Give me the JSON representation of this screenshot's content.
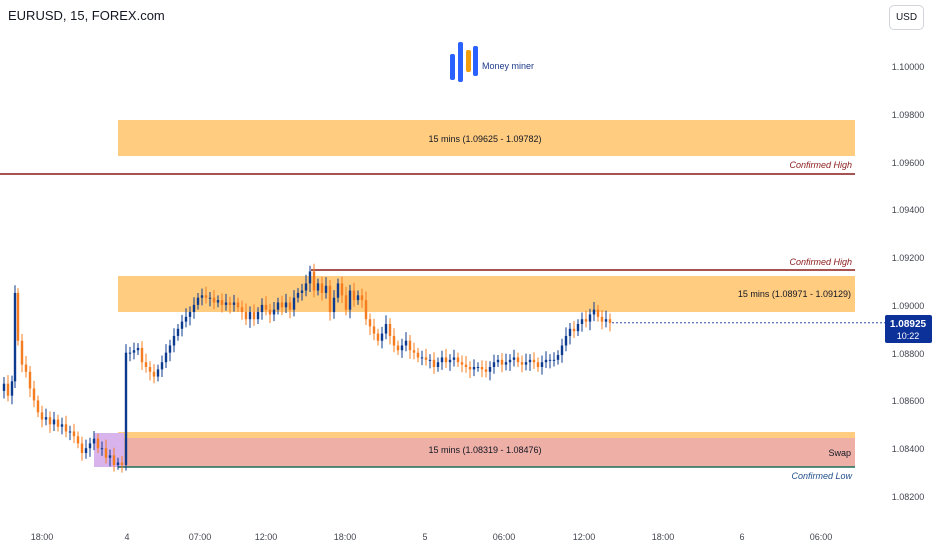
{
  "header": {
    "title": "EURUSD, 15, FOREX.com",
    "currency_button": "USD"
  },
  "logo": {
    "text": "Money miner"
  },
  "price_tag": {
    "price": "1.08925",
    "countdown": "10:22"
  },
  "annotations": {
    "zone_top": "15 mins (1.09625 - 1.09782)",
    "zone_mid": "15 mins (1.08971 - 1.09129)",
    "zone_low": "15 mins (1.08319 - 1.08476)",
    "confirmed_high_1": "Confirmed High",
    "confirmed_high_2": "Confirmed High",
    "swap": "Swap",
    "confirmed_low": "Confirmed Low"
  },
  "colors": {
    "up": "#0b3a8f",
    "down": "#f57c1f",
    "zone": "#ffcc80",
    "swap_zone": "#f2a8a8",
    "high_line": "#8b1a1a",
    "low_line": "#1f6e5c",
    "accent": "#0c3299"
  },
  "chart_data": {
    "type": "candlestick",
    "symbol": "EURUSD",
    "timeframe": "15",
    "ylim": [
      1.0815,
      1.1012
    ],
    "y_ticks": [
      1.1,
      1.098,
      1.096,
      1.094,
      1.092,
      1.09,
      1.088,
      1.086,
      1.084,
      1.082
    ],
    "y_tick_labels": [
      "1.10000",
      "1.09800",
      "1.09600",
      "1.09400",
      "1.09200",
      "1.09000",
      "1.08800",
      "1.08600",
      "1.08400",
      "1.08200"
    ],
    "x_labels": [
      "18:00",
      "4",
      "07:00",
      "12:00",
      "18:00",
      "5",
      "06:00",
      "12:00",
      "18:00",
      "6",
      "06:00"
    ],
    "last_price": 1.08925,
    "zones": [
      {
        "label": "15 mins (1.09625 - 1.09782)",
        "low": 1.09625,
        "high": 1.09782
      },
      {
        "label": "15 mins (1.08971 - 1.09129)",
        "low": 1.08971,
        "high": 1.09129
      },
      {
        "label": "15 mins (1.08319 - 1.08476)",
        "low": 1.08319,
        "high": 1.08476
      }
    ],
    "levels": [
      {
        "label": "Confirmed High",
        "price": 1.0955
      },
      {
        "label": "Confirmed High",
        "price": 1.0915
      },
      {
        "label": "Confirmed Low",
        "price": 1.0832
      }
    ],
    "price_path": [
      [
        0,
        1.0864
      ],
      [
        4,
        1.0867
      ],
      [
        8,
        1.0862
      ],
      [
        12,
        1.0868
      ],
      [
        15,
        1.0905
      ],
      [
        18,
        1.0885
      ],
      [
        22,
        1.0875
      ],
      [
        26,
        1.0872
      ],
      [
        30,
        1.0865
      ],
      [
        34,
        1.086
      ],
      [
        38,
        1.0855
      ],
      [
        42,
        1.0852
      ],
      [
        46,
        1.0853
      ],
      [
        50,
        1.085
      ],
      [
        54,
        1.0852
      ],
      [
        58,
        1.0849
      ],
      [
        62,
        1.085
      ],
      [
        66,
        1.0847
      ],
      [
        70,
        1.0847
      ],
      [
        74,
        1.0845
      ],
      [
        78,
        1.0842
      ],
      [
        82,
        1.0838
      ],
      [
        86,
        1.084
      ],
      [
        90,
        1.0842
      ],
      [
        94,
        1.0844
      ],
      [
        98,
        1.084
      ],
      [
        102,
        1.084
      ],
      [
        106,
        1.0836
      ],
      [
        110,
        1.0837
      ],
      [
        114,
        1.0833
      ],
      [
        118,
        1.0834
      ],
      [
        122,
        1.0833
      ],
      [
        126,
        1.088
      ],
      [
        130,
        1.088
      ],
      [
        134,
        1.0881
      ],
      [
        138,
        1.0882
      ],
      [
        142,
        1.0876
      ],
      [
        146,
        1.0874
      ],
      [
        150,
        1.0872
      ],
      [
        154,
        1.087
      ],
      [
        158,
        1.0873
      ],
      [
        162,
        1.0876
      ],
      [
        166,
        1.088
      ],
      [
        170,
        1.0883
      ],
      [
        174,
        1.0887
      ],
      [
        178,
        1.089
      ],
      [
        182,
        1.0893
      ],
      [
        186,
        1.0895
      ],
      [
        190,
        1.0897
      ],
      [
        194,
        1.09
      ],
      [
        198,
        1.0903
      ],
      [
        202,
        1.0904
      ],
      [
        206,
        1.0903
      ],
      [
        210,
        1.0903
      ],
      [
        214,
        1.0901
      ],
      [
        218,
        1.0902
      ],
      [
        222,
        1.09
      ],
      [
        226,
        1.0901
      ],
      [
        230,
        1.09
      ],
      [
        234,
        1.0901
      ],
      [
        238,
        1.0899
      ],
      [
        242,
        1.0897
      ],
      [
        246,
        1.0894
      ],
      [
        250,
        1.0897
      ],
      [
        254,
        1.0894
      ],
      [
        258,
        1.0897
      ],
      [
        262,
        1.09
      ],
      [
        266,
        1.0898
      ],
      [
        270,
        1.0896
      ],
      [
        274,
        1.0898
      ],
      [
        278,
        1.0901
      ],
      [
        282,
        1.0899
      ],
      [
        286,
        1.0901
      ],
      [
        290,
        1.0898
      ],
      [
        294,
        1.0903
      ],
      [
        298,
        1.0905
      ],
      [
        302,
        1.0906
      ],
      [
        306,
        1.0909
      ],
      [
        310,
        1.0914
      ],
      [
        314,
        1.0906
      ],
      [
        318,
        1.0909
      ],
      [
        322,
        1.0905
      ],
      [
        326,
        1.0908
      ],
      [
        330,
        1.0897
      ],
      [
        334,
        1.0903
      ],
      [
        338,
        1.0909
      ],
      [
        342,
        1.0904
      ],
      [
        346,
        1.0898
      ],
      [
        350,
        1.0906
      ],
      [
        354,
        1.0902
      ],
      [
        358,
        1.0904
      ],
      [
        362,
        1.0902
      ],
      [
        366,
        1.0894
      ],
      [
        370,
        1.0891
      ],
      [
        374,
        1.0888
      ],
      [
        378,
        1.0885
      ],
      [
        382,
        1.0888
      ],
      [
        386,
        1.0892
      ],
      [
        390,
        1.0887
      ],
      [
        394,
        1.0883
      ],
      [
        398,
        1.0881
      ],
      [
        402,
        1.0883
      ],
      [
        406,
        1.0885
      ],
      [
        410,
        1.0881
      ],
      [
        414,
        1.088
      ],
      [
        418,
        1.0878
      ],
      [
        422,
        1.0878
      ],
      [
        426,
        1.0877
      ],
      [
        430,
        1.0877
      ],
      [
        434,
        1.0874
      ],
      [
        438,
        1.0876
      ],
      [
        442,
        1.0878
      ],
      [
        446,
        1.0876
      ],
      [
        450,
        1.0877
      ],
      [
        454,
        1.0878
      ],
      [
        458,
        1.0876
      ],
      [
        462,
        1.0875
      ],
      [
        466,
        1.0874
      ],
      [
        470,
        1.0873
      ],
      [
        474,
        1.0874
      ],
      [
        478,
        1.0874
      ],
      [
        482,
        1.0873
      ],
      [
        486,
        1.0872
      ],
      [
        490,
        1.0874
      ],
      [
        494,
        1.0876
      ],
      [
        498,
        1.0877
      ],
      [
        502,
        1.0875
      ],
      [
        506,
        1.0876
      ],
      [
        510,
        1.0877
      ],
      [
        514,
        1.0878
      ],
      [
        518,
        1.0876
      ],
      [
        522,
        1.0875
      ],
      [
        526,
        1.0876
      ],
      [
        530,
        1.0877
      ],
      [
        534,
        1.0876
      ],
      [
        538,
        1.0874
      ],
      [
        542,
        1.0876
      ],
      [
        546,
        1.0877
      ],
      [
        550,
        1.0877
      ],
      [
        554,
        1.0877
      ],
      [
        558,
        1.0879
      ],
      [
        562,
        1.0883
      ],
      [
        566,
        1.0887
      ],
      [
        570,
        1.089
      ],
      [
        574,
        1.0889
      ],
      [
        578,
        1.0892
      ],
      [
        582,
        1.0894
      ],
      [
        586,
        1.0893
      ],
      [
        590,
        1.0896
      ],
      [
        594,
        1.0898
      ],
      [
        598,
        1.0895
      ],
      [
        602,
        1.0893
      ],
      [
        606,
        1.0894
      ],
      [
        610,
        1.08925
      ]
    ]
  }
}
